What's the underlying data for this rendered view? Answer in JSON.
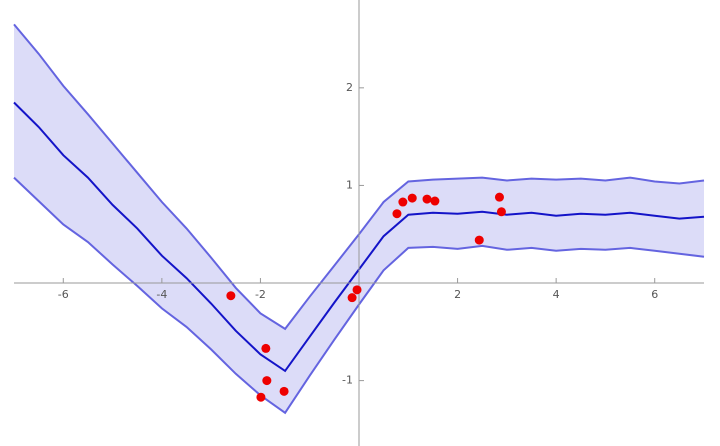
{
  "chart_data": {
    "type": "band",
    "x": [
      -7,
      -6.5,
      -6,
      -5.5,
      -5,
      -4.5,
      -4,
      -3.5,
      -3,
      -2.5,
      -2,
      -1.5,
      -1,
      -0.5,
      0,
      0.5,
      1,
      1.5,
      2,
      2.5,
      3,
      3.5,
      4,
      4.5,
      5,
      5.5,
      6,
      6.5,
      7
    ],
    "line": {
      "color": "#1414c8",
      "values": [
        1.85,
        1.6,
        1.31,
        1.08,
        0.8,
        0.56,
        0.28,
        0.05,
        -0.21,
        -0.49,
        -0.73,
        -0.9,
        -0.55,
        -0.2,
        0.14,
        0.48,
        0.7,
        0.72,
        0.71,
        0.73,
        0.7,
        0.72,
        0.69,
        0.71,
        0.7,
        0.72,
        0.69,
        0.66,
        0.68
      ]
    },
    "band": {
      "color": "#dcdcf8",
      "edge_color": "#6464e0",
      "upper": [
        2.65,
        2.35,
        2.02,
        1.73,
        1.43,
        1.13,
        0.83,
        0.56,
        0.26,
        -0.05,
        -0.31,
        -0.47,
        -0.14,
        0.18,
        0.5,
        0.83,
        1.04,
        1.06,
        1.07,
        1.08,
        1.05,
        1.07,
        1.06,
        1.07,
        1.05,
        1.08,
        1.04,
        1.02,
        1.05
      ],
      "lower": [
        1.08,
        0.84,
        0.6,
        0.42,
        0.19,
        -0.03,
        -0.26,
        -0.45,
        -0.68,
        -0.93,
        -1.15,
        -1.33,
        -0.95,
        -0.58,
        -0.22,
        0.13,
        0.36,
        0.37,
        0.35,
        0.38,
        0.34,
        0.36,
        0.33,
        0.35,
        0.34,
        0.36,
        0.33,
        0.3,
        0.27
      ]
    },
    "points": {
      "color": "#ee0000",
      "x": [
        -2.6,
        -1.89,
        -1.87,
        -1.99,
        -1.52,
        -0.14,
        -0.04,
        0.77,
        0.89,
        1.08,
        1.38,
        1.54,
        2.44,
        2.85,
        2.89
      ],
      "y": [
        -0.13,
        -0.67,
        -1.0,
        -1.17,
        -1.11,
        -0.15,
        -0.07,
        0.71,
        0.83,
        0.87,
        0.86,
        0.84,
        0.44,
        0.88,
        0.73
      ]
    },
    "xlim": [
      -7,
      7
    ],
    "ylim": [
      -1.67,
      2.9
    ],
    "xticks": [
      -6,
      -4,
      -2,
      2,
      4,
      6
    ],
    "yticks": [
      -1,
      1,
      2
    ]
  }
}
